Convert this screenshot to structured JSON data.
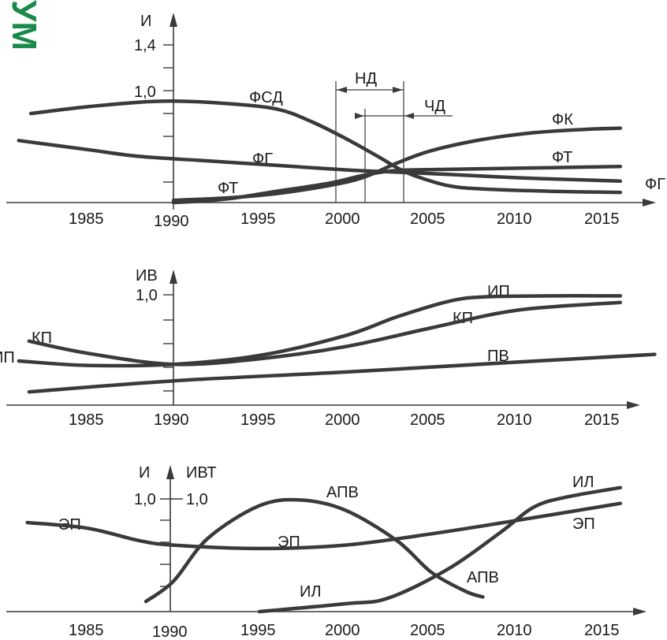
{
  "brand": {
    "logo_text": "УМ",
    "logo_color": "#1a8a4a"
  },
  "colors": {
    "curve": "#3a3a3a",
    "text": "#1a1a1a"
  },
  "chart_data": [
    {
      "type": "line",
      "id": "panel1",
      "y_label": "И",
      "y_tick_labels": [
        "1,4",
        "1,0"
      ],
      "x_tick_labels": [
        "1985",
        "1990",
        "1995",
        "2000",
        "2005",
        "2010",
        "2015"
      ],
      "xlim": [
        1981,
        2017
      ],
      "ylim": [
        0,
        1.5
      ],
      "series": [
        {
          "name": "ФСД",
          "points": [
            [
              1981.7,
              0.79
            ],
            [
              1985,
              0.85
            ],
            [
              1988,
              0.89
            ],
            [
              1990,
              0.9
            ],
            [
              1993,
              0.88
            ],
            [
              1996,
              0.83
            ],
            [
              1998,
              0.72
            ],
            [
              2000,
              0.57
            ],
            [
              2002,
              0.4
            ],
            [
              2003,
              0.31
            ],
            [
              2004,
              0.24
            ],
            [
              2006,
              0.15
            ],
            [
              2008,
              0.12
            ],
            [
              2012,
              0.1
            ],
            [
              2016,
              0.09
            ]
          ]
        },
        {
          "name": "ФГ",
          "points": [
            [
              1981,
              0.55
            ],
            [
              1985,
              0.47
            ],
            [
              1988,
              0.41
            ],
            [
              1992,
              0.37
            ],
            [
              1996,
              0.33
            ],
            [
              2000,
              0.29
            ],
            [
              2003,
              0.27
            ],
            [
              2006,
              0.25
            ],
            [
              2010,
              0.22
            ],
            [
              2014,
              0.2
            ],
            [
              2016,
              0.19
            ]
          ]
        },
        {
          "name": "ФК",
          "points": [
            [
              1990,
              0.02
            ],
            [
              1993,
              0.04
            ],
            [
              1996,
              0.08
            ],
            [
              1999,
              0.15
            ],
            [
              2001,
              0.22
            ],
            [
              2003,
              0.35
            ],
            [
              2005,
              0.46
            ],
            [
              2008,
              0.56
            ],
            [
              2011,
              0.62
            ],
            [
              2014,
              0.65
            ],
            [
              2016,
              0.66
            ]
          ]
        },
        {
          "name": "ФТ",
          "points": [
            [
              1990,
              0.0
            ],
            [
              1993,
              0.03
            ],
            [
              1996,
              0.1
            ],
            [
              1999,
              0.17
            ],
            [
              2001,
              0.24
            ],
            [
              2002.6,
              0.28
            ],
            [
              2004,
              0.29
            ],
            [
              2008,
              0.3
            ],
            [
              2012,
              0.31
            ],
            [
              2016,
              0.32
            ]
          ]
        }
      ],
      "annotations": [
        "ФСД",
        "ФГ",
        "ФТ",
        "ФК",
        "ФТ",
        "ФГ",
        "НД",
        "ЧД"
      ]
    },
    {
      "type": "line",
      "id": "panel2",
      "y_label": "ИВ",
      "y_tick_labels": [
        "1,0"
      ],
      "x_tick_labels": [
        "1985",
        "1990",
        "1995",
        "2000",
        "2005",
        "2010",
        "2015"
      ],
      "xlim": [
        1981,
        2017
      ],
      "ylim": [
        0,
        1.2
      ],
      "series": [
        {
          "name": "ИП",
          "points": [
            [
              1981,
              0.4
            ],
            [
              1985,
              0.36
            ],
            [
              1990,
              0.37
            ],
            [
              1995,
              0.45
            ],
            [
              2000,
              0.63
            ],
            [
              2003,
              0.8
            ],
            [
              2006,
              0.94
            ],
            [
              2008,
              0.98
            ],
            [
              2012,
              0.99
            ],
            [
              2016,
              0.99
            ]
          ]
        },
        {
          "name": "КП",
          "points": [
            [
              1981.6,
              0.58
            ],
            [
              1985,
              0.47
            ],
            [
              1990,
              0.37
            ],
            [
              1995,
              0.42
            ],
            [
              2000,
              0.53
            ],
            [
              2005,
              0.7
            ],
            [
              2010,
              0.86
            ],
            [
              2016,
              0.93
            ]
          ]
        },
        {
          "name": "ПВ",
          "points": [
            [
              1981.6,
              0.12
            ],
            [
              1990,
              0.22
            ],
            [
              2000,
              0.3
            ],
            [
              2010,
              0.39
            ],
            [
              2018,
              0.46
            ]
          ]
        }
      ],
      "annotations": [
        "ИП",
        "КП",
        "КП",
        "ПВ",
        "ИП"
      ]
    },
    {
      "type": "line",
      "id": "panel3",
      "y_label_left": "И",
      "y_label_right": "ИВТ",
      "y_tick_labels": [
        "1,0",
        "1,0"
      ],
      "x_tick_labels": [
        "1985",
        "1990",
        "1995",
        "2000",
        "2005",
        "2010",
        "2015"
      ],
      "xlim": [
        1981,
        2017
      ],
      "ylim": [
        0,
        1.2
      ],
      "series": [
        {
          "name": "ЭП",
          "points": [
            [
              1981.5,
              0.79
            ],
            [
              1985,
              0.74
            ],
            [
              1988,
              0.63
            ],
            [
              1990,
              0.59
            ],
            [
              1995,
              0.56
            ],
            [
              2000,
              0.59
            ],
            [
              2005,
              0.69
            ],
            [
              2010,
              0.81
            ],
            [
              2016,
              0.96
            ]
          ]
        },
        {
          "name": "АПВ",
          "points": [
            [
              1988.4,
              0.09
            ],
            [
              1990,
              0.27
            ],
            [
              1992,
              0.65
            ],
            [
              1995,
              0.94
            ],
            [
              1997.4,
              0.99
            ],
            [
              2000,
              0.9
            ],
            [
              2003,
              0.63
            ],
            [
              2005,
              0.35
            ],
            [
              2007,
              0.18
            ],
            [
              2008,
              0.13
            ]
          ]
        },
        {
          "name": "ИЛ",
          "points": [
            [
              1995,
              0.0
            ],
            [
              2000,
              0.07
            ],
            [
              2002.5,
              0.12
            ],
            [
              2006,
              0.38
            ],
            [
              2009,
              0.7
            ],
            [
              2011,
              0.93
            ],
            [
              2013,
              1.02
            ],
            [
              2016,
              1.1
            ]
          ]
        }
      ],
      "annotations": [
        "ЭП",
        "ЭП",
        "ЭП",
        "АПВ",
        "АПВ",
        "ИЛ",
        "ИЛ"
      ]
    }
  ]
}
